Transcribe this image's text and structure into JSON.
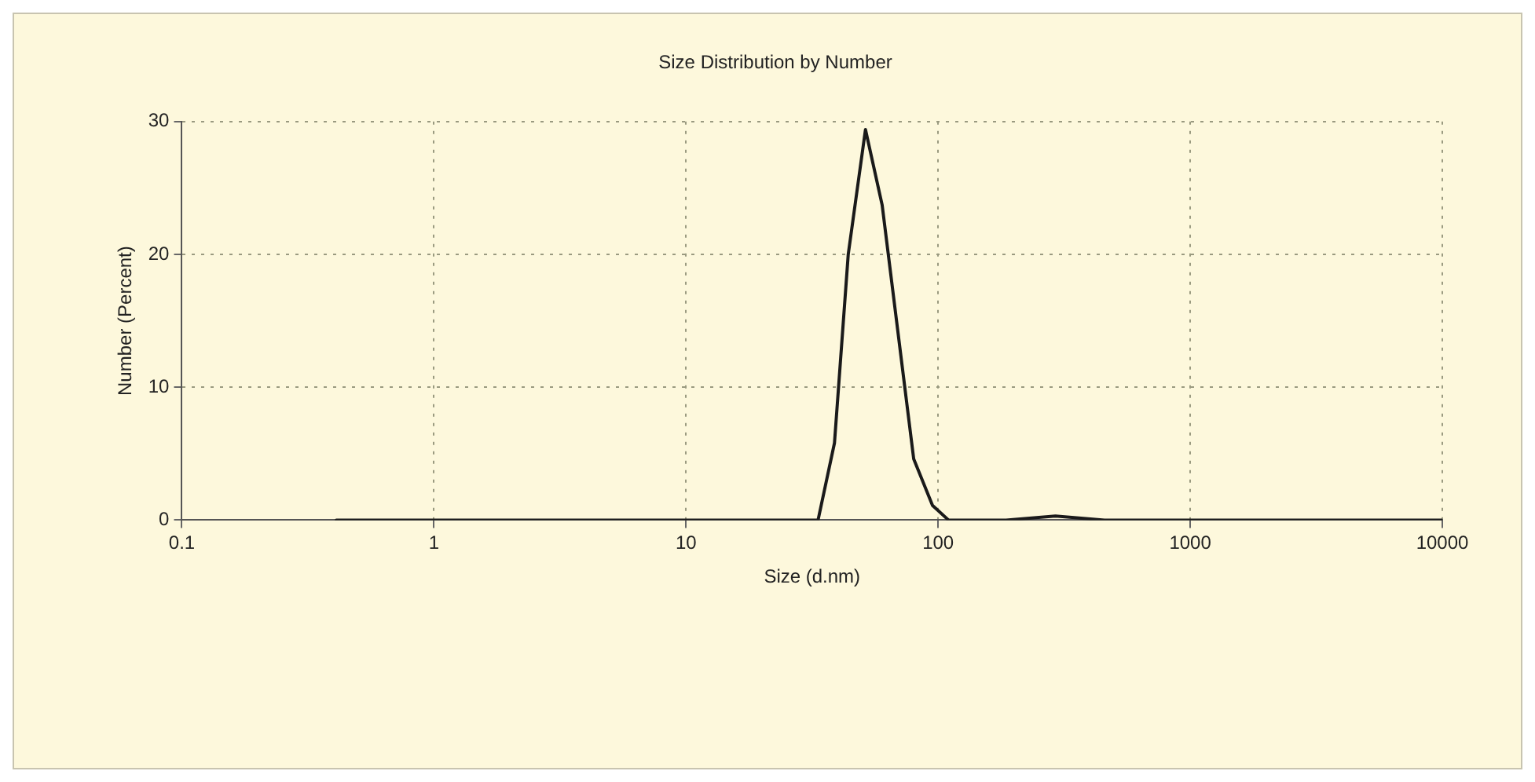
{
  "chart_data": {
    "type": "line",
    "title": "Size Distribution by Number",
    "xlabel": "Size (d.nm)",
    "ylabel": "Number (Percent)",
    "log": "x",
    "xlim": [
      0.1,
      10000
    ],
    "xticks": [
      0.1,
      1,
      10,
      100,
      1000,
      10000
    ],
    "ylim": [
      0,
      30
    ],
    "yticks": [
      0,
      10,
      20,
      30
    ],
    "grid": true,
    "marker": "none",
    "line_style": "solid",
    "series": [
      {
        "color": "#1a1a1a",
        "x": [
          0.41,
          1,
          10,
          33.4,
          38.8,
          44,
          51.5,
          60,
          80,
          95,
          110,
          186,
          292,
          457,
          1000,
          10000
        ],
        "values": [
          0,
          0,
          0,
          0,
          5.8,
          20,
          29.4,
          23.7,
          4.6,
          1.1,
          0,
          0,
          0.3,
          0,
          0,
          0
        ]
      }
    ]
  }
}
